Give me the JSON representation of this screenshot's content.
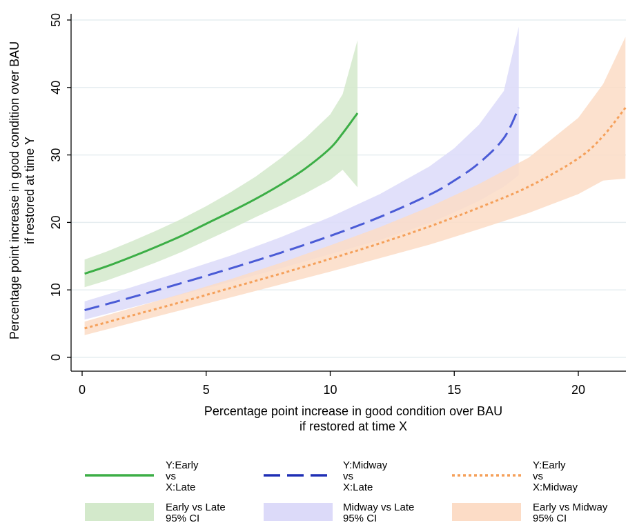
{
  "chart_data": {
    "type": "line",
    "title": "",
    "xlabel_lines": [
      "Percentage point increase in good condition over BAU",
      "if restored at time X"
    ],
    "ylabel_lines": [
      "Percentage point increase in good condition over BAU",
      "if restored at time Y"
    ],
    "xlim": [
      0,
      22
    ],
    "ylim": [
      0,
      50
    ],
    "xticks": [
      0,
      5,
      10,
      15,
      20
    ],
    "yticks": [
      0,
      10,
      20,
      30,
      40,
      50
    ],
    "grid": true,
    "legend_position": "bottom",
    "series": [
      {
        "name_lines": [
          "Y:Early",
          "vs",
          "X:Late"
        ],
        "color": "#3cae46",
        "line_style": "solid",
        "x": [
          0.1,
          1,
          2,
          3,
          4,
          5,
          6,
          7,
          8,
          9,
          10,
          10.5,
          11.1
        ],
        "y": [
          12.4,
          13.5,
          14.9,
          16.4,
          18.0,
          19.8,
          21.6,
          23.5,
          25.6,
          28.0,
          31.0,
          33.2,
          36.2
        ],
        "ci_upper": [
          14.5,
          15.7,
          17.2,
          18.8,
          20.5,
          22.4,
          24.5,
          26.8,
          29.5,
          32.5,
          36.0,
          39.0,
          47.0
        ],
        "ci_lower": [
          10.4,
          11.4,
          12.7,
          14.1,
          15.6,
          17.3,
          19.0,
          20.8,
          22.5,
          24.3,
          26.3,
          27.8,
          25.2
        ]
      },
      {
        "name_lines": [
          "Y:Midway",
          "vs",
          "X:Late"
        ],
        "color": "#4a5bd6",
        "line_style": "dashed",
        "x": [
          0.1,
          2,
          4,
          6,
          8,
          10,
          12,
          14,
          15,
          16,
          17,
          17.6
        ],
        "y": [
          7.0,
          8.9,
          11.0,
          13.2,
          15.5,
          18.0,
          20.8,
          24.1,
          26.2,
          28.8,
          32.5,
          37.0
        ],
        "ci_upper": [
          8.3,
          10.4,
          12.7,
          15.1,
          17.8,
          20.8,
          24.2,
          28.3,
          31.0,
          34.5,
          39.5,
          49.0
        ],
        "ci_lower": [
          5.6,
          7.4,
          9.3,
          11.2,
          13.2,
          15.3,
          17.4,
          19.9,
          21.5,
          23.2,
          25.3,
          27.0
        ]
      },
      {
        "name_lines": [
          "Y:Early",
          "vs",
          "X:Midway"
        ],
        "color": "#f5a05a",
        "line_style": "dotted",
        "x": [
          0.1,
          2,
          4,
          6,
          8,
          10,
          12,
          14,
          16,
          18,
          20,
          21,
          21.9
        ],
        "y": [
          4.3,
          6.2,
          8.2,
          10.3,
          12.4,
          14.6,
          16.9,
          19.4,
          22.2,
          25.3,
          29.5,
          32.8,
          37.0
        ],
        "ci_upper": [
          5.3,
          7.3,
          9.4,
          11.6,
          14.0,
          16.6,
          19.3,
          22.3,
          25.7,
          29.6,
          35.5,
          40.5,
          47.5
        ],
        "ci_lower": [
          3.3,
          5.1,
          7.0,
          8.9,
          10.8,
          12.7,
          14.7,
          16.7,
          19.0,
          21.4,
          24.2,
          26.2,
          26.5
        ]
      }
    ],
    "ci_bands": [
      {
        "name_lines": [
          "Early vs Late",
          "95% CI"
        ],
        "color": "#d3e9cb"
      },
      {
        "name_lines": [
          "Midway vs Late",
          "95% CI"
        ],
        "color": "#dcdaf9"
      },
      {
        "name_lines": [
          "Early vs Midway",
          "95% CI"
        ],
        "color": "#fcdcc6"
      }
    ]
  }
}
